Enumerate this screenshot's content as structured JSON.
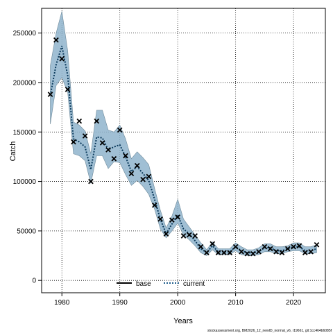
{
  "chart_data": {
    "type": "line",
    "xlabel": "Years",
    "ylabel": "Catch",
    "xlim": [
      1976.5,
      2025.5
    ],
    "ylim": [
      -12500,
      275000
    ],
    "xticks": [
      1980,
      1990,
      2000,
      2010,
      2020
    ],
    "yticks": [
      0,
      50000,
      100000,
      150000,
      200000,
      250000
    ],
    "xtick_labels": [
      "1980",
      "1990",
      "2000",
      "2010",
      "2020"
    ],
    "ytick_labels": [
      "0",
      "50000",
      "100000",
      "150000",
      "200000",
      "250000"
    ],
    "grid": true,
    "legend": {
      "placement": "bottom-center",
      "entries": [
        {
          "label": "base",
          "style": "solid",
          "color": "#000000"
        },
        {
          "label": "current",
          "style": "dotted",
          "color": "#1b5a8a"
        }
      ]
    },
    "x": [
      1978,
      1979,
      1980,
      1981,
      1982,
      1983,
      1984,
      1985,
      1986,
      1987,
      1988,
      1989,
      1990,
      1991,
      1992,
      1993,
      1994,
      1995,
      1996,
      1997,
      1998,
      1999,
      2000,
      2001,
      2002,
      2003,
      2004,
      2005,
      2006,
      2007,
      2008,
      2009,
      2010,
      2011,
      2012,
      2013,
      2014,
      2015,
      2016,
      2017,
      2018,
      2019,
      2020,
      2021,
      2022,
      2023,
      2024
    ],
    "series": [
      {
        "name": "current",
        "values": [
          187000,
          218000,
          237000,
          207000,
          143000,
          140000,
          135000,
          112000,
          145000,
          144000,
          132000,
          135000,
          137000,
          125000,
          110000,
          115000,
          108000,
          101000,
          82000,
          62000,
          47000,
          57000,
          66000,
          52000,
          47000,
          40000,
          32000,
          28000,
          35000,
          29000,
          29000,
          29000,
          34000,
          30000,
          28000,
          28000,
          29000,
          33000,
          33000,
          30000,
          30000,
          32000,
          34000,
          34000,
          30000,
          30000,
          32000
        ],
        "ci_lower": [
          158000,
          197000,
          205000,
          190000,
          128000,
          126000,
          121000,
          98000,
          126000,
          126000,
          113000,
          120000,
          119000,
          107000,
          96000,
          101000,
          95000,
          87000,
          72000,
          52000,
          43000,
          50000,
          58000,
          46000,
          41000,
          35000,
          28000,
          25000,
          31000,
          26000,
          26000,
          26000,
          30000,
          26000,
          25000,
          25000,
          26000,
          29000,
          29000,
          27000,
          27000,
          29000,
          30000,
          30000,
          27000,
          27000,
          28000
        ],
        "ci_upper": [
          217000,
          250000,
          272000,
          232000,
          160000,
          157000,
          151000,
          128000,
          172000,
          172000,
          152000,
          150000,
          157000,
          143000,
          123000,
          130000,
          124000,
          117000,
          93000,
          71000,
          53000,
          65000,
          82000,
          62000,
          54000,
          46000,
          38000,
          31000,
          39000,
          32000,
          32000,
          32000,
          38000,
          34000,
          31000,
          31000,
          33000,
          37000,
          37000,
          34000,
          34000,
          35000,
          38000,
          38000,
          34000,
          34000,
          36000
        ]
      },
      {
        "name": "observed",
        "values": [
          188000,
          243000,
          224000,
          193000,
          140000,
          161000,
          146000,
          100000,
          161000,
          139000,
          132000,
          123000,
          152000,
          126000,
          108000,
          116000,
          102000,
          105000,
          76000,
          62000,
          47000,
          61000,
          64000,
          45000,
          46000,
          45000,
          34000,
          28000,
          37000,
          28000,
          28000,
          28000,
          34000,
          29000,
          27000,
          27000,
          29000,
          34000,
          32000,
          29000,
          28000,
          32000,
          34000,
          35000,
          28000,
          29000,
          36000
        ]
      }
    ],
    "footnote": "stockassessment.org, BM2026_12_newID_normal_v6, r19661, git:1cc464b6085f"
  }
}
